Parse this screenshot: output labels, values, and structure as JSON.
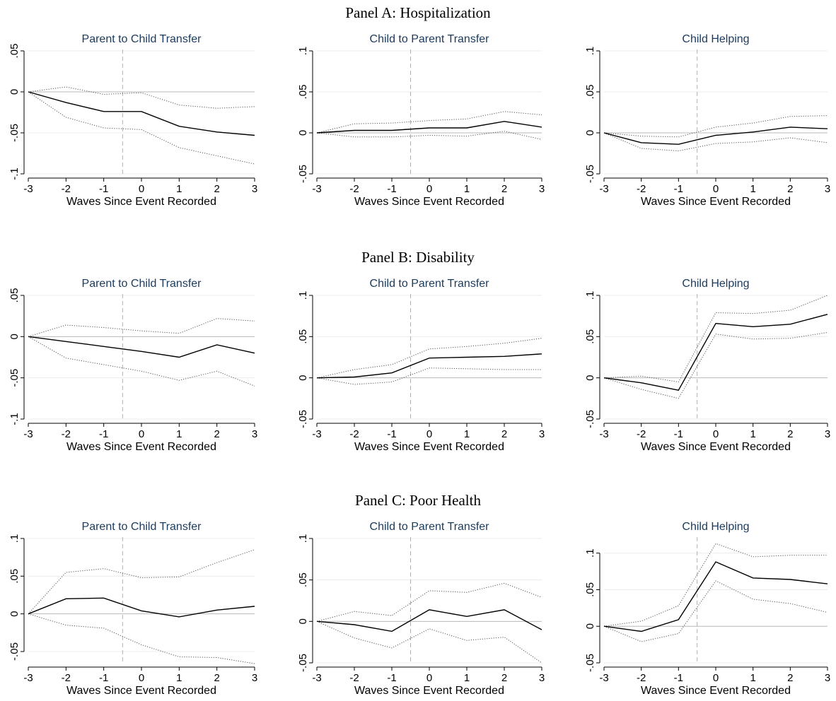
{
  "panels": [
    {
      "title": "Panel A: Hospitalization",
      "charts": [
        {
          "type": "line",
          "title": "Parent to Child Transfer",
          "xlabel": "Waves Since Event Recorded",
          "ylabel": "",
          "x": [
            -3,
            -2,
            -1,
            0,
            1,
            2,
            3
          ],
          "xticks": [
            "-3",
            "-2",
            "-1",
            "0",
            "1",
            "2",
            "3"
          ],
          "ylim": [
            -0.1,
            0.05
          ],
          "yticks": [
            {
              "v": -0.1,
              "label": "-.1"
            },
            {
              "v": -0.05,
              "label": "-.05"
            },
            {
              "v": 0,
              "label": "0"
            },
            {
              "v": 0.05,
              "label": ".05"
            }
          ],
          "event_line_x": -0.5,
          "estimate": [
            0,
            -0.013,
            -0.024,
            -0.024,
            -0.042,
            -0.049,
            -0.053
          ],
          "ci_upper": [
            0,
            0.006,
            -0.003,
            -0.001,
            -0.016,
            -0.02,
            -0.018
          ],
          "ci_lower": [
            0,
            -0.031,
            -0.044,
            -0.046,
            -0.068,
            -0.078,
            -0.088
          ]
        },
        {
          "type": "line",
          "title": "Child to Parent Transfer",
          "xlabel": "Waves Since Event Recorded",
          "ylabel": "",
          "x": [
            -3,
            -2,
            -1,
            0,
            1,
            2,
            3
          ],
          "xticks": [
            "-3",
            "-2",
            "-1",
            "0",
            "1",
            "2",
            "3"
          ],
          "ylim": [
            -0.05,
            0.1
          ],
          "yticks": [
            {
              "v": -0.05,
              "label": "-.05"
            },
            {
              "v": 0,
              "label": "0"
            },
            {
              "v": 0.05,
              "label": ".05"
            },
            {
              "v": 0.1,
              "label": ".1"
            }
          ],
          "event_line_x": -0.5,
          "estimate": [
            0,
            0.003,
            0.003,
            0.006,
            0.006,
            0.014,
            0.007
          ],
          "ci_upper": [
            0,
            0.011,
            0.012,
            0.015,
            0.017,
            0.026,
            0.022
          ],
          "ci_lower": [
            0,
            -0.005,
            -0.005,
            -0.003,
            -0.004,
            0.002,
            -0.008
          ]
        },
        {
          "type": "line",
          "title": "Child Helping",
          "xlabel": "Waves Since Event Recorded",
          "ylabel": "",
          "x": [
            -3,
            -2,
            -1,
            0,
            1,
            2,
            3
          ],
          "xticks": [
            "-3",
            "-2",
            "-1",
            "0",
            "1",
            "2",
            "3"
          ],
          "ylim": [
            -0.05,
            0.1
          ],
          "yticks": [
            {
              "v": -0.05,
              "label": "-.05"
            },
            {
              "v": 0,
              "label": "0"
            },
            {
              "v": 0.05,
              "label": ".05"
            },
            {
              "v": 0.1,
              "label": ".1"
            }
          ],
          "event_line_x": -0.5,
          "estimate": [
            0,
            -0.012,
            -0.014,
            -0.003,
            0.001,
            0.007,
            0.005
          ],
          "ci_upper": [
            0,
            -0.004,
            -0.005,
            0.007,
            0.012,
            0.02,
            0.021
          ],
          "ci_lower": [
            0,
            -0.019,
            -0.022,
            -0.013,
            -0.011,
            -0.006,
            -0.012
          ]
        }
      ]
    },
    {
      "title": "Panel B: Disability",
      "charts": [
        {
          "type": "line",
          "title": "Parent to Child Transfer",
          "xlabel": "Waves Since Event Recorded",
          "ylabel": "",
          "x": [
            -3,
            -2,
            -1,
            0,
            1,
            2,
            3
          ],
          "xticks": [
            "-3",
            "-2",
            "-1",
            "0",
            "1",
            "2",
            "3"
          ],
          "ylim": [
            -0.1,
            0.05
          ],
          "yticks": [
            {
              "v": -0.1,
              "label": "-.1"
            },
            {
              "v": -0.05,
              "label": "-.05"
            },
            {
              "v": 0,
              "label": "0"
            },
            {
              "v": 0.05,
              "label": ".05"
            }
          ],
          "event_line_x": -0.5,
          "estimate": [
            0,
            -0.006,
            -0.012,
            -0.018,
            -0.025,
            -0.01,
            -0.02
          ],
          "ci_upper": [
            0,
            0.014,
            0.011,
            0.007,
            0.004,
            0.022,
            0.019
          ],
          "ci_lower": [
            0,
            -0.026,
            -0.034,
            -0.042,
            -0.053,
            -0.042,
            -0.06
          ]
        },
        {
          "type": "line",
          "title": "Child to Parent Transfer",
          "xlabel": "Waves Since Event Recorded",
          "ylabel": "",
          "x": [
            -3,
            -2,
            -1,
            0,
            1,
            2,
            3
          ],
          "xticks": [
            "-3",
            "-2",
            "-1",
            "0",
            "1",
            "2",
            "3"
          ],
          "ylim": [
            -0.05,
            0.1
          ],
          "yticks": [
            {
              "v": -0.05,
              "label": "-.05"
            },
            {
              "v": 0,
              "label": "0"
            },
            {
              "v": 0.05,
              "label": ".05"
            },
            {
              "v": 0.1,
              "label": ".1"
            }
          ],
          "event_line_x": -0.5,
          "estimate": [
            0,
            0.001,
            0.006,
            0.024,
            0.025,
            0.026,
            0.029
          ],
          "ci_upper": [
            0,
            0.01,
            0.016,
            0.035,
            0.038,
            0.042,
            0.048
          ],
          "ci_lower": [
            0,
            -0.008,
            -0.005,
            0.012,
            0.011,
            0.01,
            0.01
          ]
        },
        {
          "type": "line",
          "title": "Child Helping",
          "xlabel": "Waves Since Event Recorded",
          "ylabel": "",
          "x": [
            -3,
            -2,
            -1,
            0,
            1,
            2,
            3
          ],
          "xticks": [
            "-3",
            "-2",
            "-1",
            "0",
            "1",
            "2",
            "3"
          ],
          "ylim": [
            -0.05,
            0.1
          ],
          "yticks": [
            {
              "v": -0.05,
              "label": "-.05"
            },
            {
              "v": 0,
              "label": "0"
            },
            {
              "v": 0.05,
              "label": ".05"
            },
            {
              "v": 0.1,
              "label": ".1"
            }
          ],
          "event_line_x": -0.5,
          "estimate": [
            0,
            -0.006,
            -0.015,
            0.066,
            0.062,
            0.065,
            0.077
          ],
          "ci_upper": [
            0,
            0.002,
            -0.005,
            0.079,
            0.078,
            0.082,
            0.1
          ],
          "ci_lower": [
            0,
            -0.014,
            -0.025,
            0.053,
            0.047,
            0.048,
            0.055
          ]
        }
      ]
    },
    {
      "title": "Panel C: Poor Health",
      "charts": [
        {
          "type": "line",
          "title": "Parent to Child Transfer",
          "xlabel": "Waves Since Event Recorded",
          "ylabel": "",
          "x": [
            -3,
            -2,
            -1,
            0,
            1,
            2,
            3
          ],
          "xticks": [
            "-3",
            "-2",
            "-1",
            "0",
            "1",
            "2",
            "3"
          ],
          "ylim": [
            -0.065,
            0.1
          ],
          "yticks": [
            {
              "v": -0.05,
              "label": "-.05"
            },
            {
              "v": 0,
              "label": "0"
            },
            {
              "v": 0.05,
              "label": ".05"
            },
            {
              "v": 0.1,
              "label": ".1"
            }
          ],
          "event_line_x": -0.5,
          "estimate": [
            0,
            0.02,
            0.021,
            0.004,
            -0.004,
            0.005,
            0.01
          ],
          "ci_upper": [
            0,
            0.055,
            0.06,
            0.048,
            0.049,
            0.068,
            0.085
          ],
          "ci_lower": [
            0,
            -0.015,
            -0.019,
            -0.041,
            -0.057,
            -0.058,
            -0.066
          ]
        },
        {
          "type": "line",
          "title": "Child to Parent Transfer",
          "xlabel": "Waves Since Event Recorded",
          "ylabel": "",
          "x": [
            -3,
            -2,
            -1,
            0,
            1,
            2,
            3
          ],
          "xticks": [
            "-3",
            "-2",
            "-1",
            "0",
            "1",
            "2",
            "3"
          ],
          "ylim": [
            -0.05,
            0.1
          ],
          "yticks": [
            {
              "v": -0.05,
              "label": "-.05"
            },
            {
              "v": 0,
              "label": "0"
            },
            {
              "v": 0.05,
              "label": ".05"
            },
            {
              "v": 0.1,
              "label": ".1"
            }
          ],
          "event_line_x": -0.5,
          "estimate": [
            0,
            -0.004,
            -0.012,
            0.014,
            0.006,
            0.014,
            -0.01
          ],
          "ci_upper": [
            0,
            0.012,
            0.007,
            0.037,
            0.035,
            0.046,
            0.029
          ],
          "ci_lower": [
            0,
            -0.02,
            -0.032,
            -0.009,
            -0.023,
            -0.019,
            -0.05
          ]
        },
        {
          "type": "line",
          "title": "Child Helping",
          "xlabel": "Waves Since Event Recorded",
          "ylabel": "",
          "x": [
            -3,
            -2,
            -1,
            0,
            1,
            2,
            3
          ],
          "xticks": [
            "-3",
            "-2",
            "-1",
            "0",
            "1",
            "2",
            "3"
          ],
          "ylim": [
            -0.05,
            0.12
          ],
          "yticks": [
            {
              "v": -0.05,
              "label": "-.05"
            },
            {
              "v": 0,
              "label": "0"
            },
            {
              "v": 0.05,
              "label": ".05"
            },
            {
              "v": 0.1,
              "label": ".1"
            }
          ],
          "event_line_x": -0.5,
          "estimate": [
            0,
            -0.007,
            0.009,
            0.088,
            0.066,
            0.064,
            0.058
          ],
          "ci_upper": [
            0,
            0.007,
            0.028,
            0.113,
            0.095,
            0.097,
            0.097
          ],
          "ci_lower": [
            0,
            -0.021,
            -0.01,
            0.062,
            0.037,
            0.031,
            0.019
          ]
        }
      ]
    }
  ]
}
